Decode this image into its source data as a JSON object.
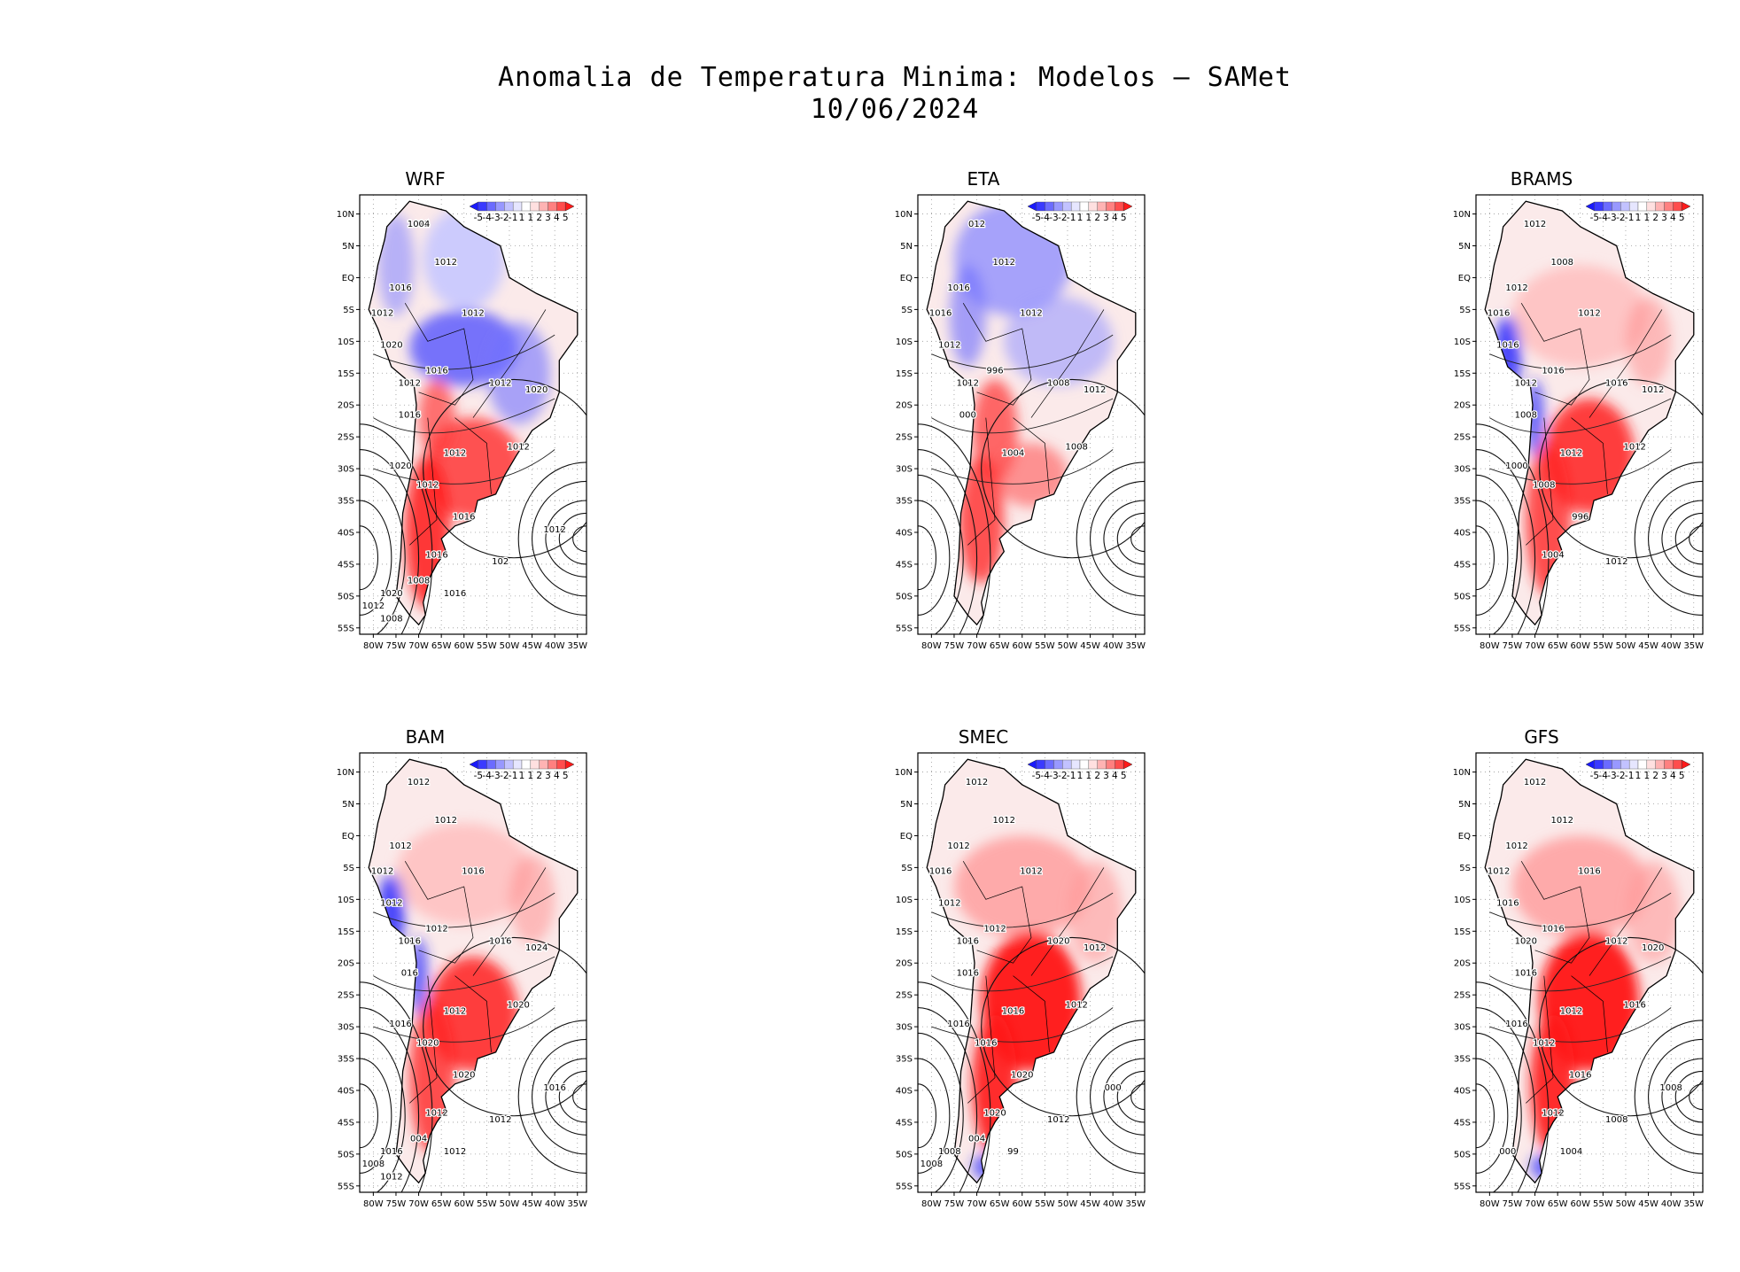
{
  "title": {
    "line1": "Anomalia de Temperatura Minima: Modelos – SAMet",
    "line2": "10/06/2024"
  },
  "colorbar": {
    "labels": [
      "-5",
      "-4",
      "-3",
      "-2",
      "-1",
      "1",
      "1",
      "2",
      "3",
      "4",
      "5"
    ],
    "colors": [
      "#1a1aff",
      "#3a3aff",
      "#6b6bff",
      "#9898ff",
      "#c2c2ff",
      "#e6e6ff",
      "#ffffff",
      "#ffe0e0",
      "#ffb3b3",
      "#ff8080",
      "#ff4d4d",
      "#ff1a1a"
    ]
  },
  "axes": {
    "lat_labels": [
      "10N",
      "5N",
      "EQ",
      "5S",
      "10S",
      "15S",
      "20S",
      "25S",
      "30S",
      "35S",
      "40S",
      "45S",
      "50S",
      "55S"
    ],
    "lon_labels": [
      "80W",
      "75W",
      "70W",
      "65W",
      "60W",
      "55W",
      "50W",
      "45W",
      "40W",
      "35W"
    ]
  },
  "panels": [
    {
      "name": "WRF",
      "tone": "mixed-cold-north",
      "isobars": [
        "1012",
        "1012",
        "1016",
        "1012",
        "1012",
        "1020",
        "1016",
        "1012",
        "1012",
        "1020",
        "1016",
        "1012",
        "1012",
        "1012",
        "1016",
        "1020",
        "1016",
        "102",
        "1020",
        "1016",
        "1012",
        "1008",
        "1012",
        "1008",
        "1004",
        "1012"
      ]
    },
    {
      "name": "ETA",
      "tone": "cold-north",
      "isobars": [
        "012",
        "1012",
        "1016",
        "1012",
        "1016",
        "1012",
        "996",
        "1012",
        "1008",
        "1012",
        "000",
        "1004",
        "1008"
      ]
    },
    {
      "name": "BRAMS",
      "tone": "warm",
      "isobars": [
        "1012",
        "1008",
        "1012",
        "1012",
        "1016",
        "1016",
        "1016",
        "1012",
        "1016",
        "1012",
        "1008",
        "1012",
        "1012",
        "1008",
        "996",
        "1000",
        "1004",
        "1012"
      ]
    },
    {
      "name": "BAM",
      "tone": "warm",
      "isobars": [
        "1012",
        "1012",
        "1012",
        "1016",
        "1012",
        "1012",
        "1012",
        "1016",
        "1016",
        "1024",
        "016",
        "1012",
        "1020",
        "1020",
        "1020",
        "1016",
        "1012",
        "1012",
        "1016",
        "1012",
        "1016",
        "004",
        "1008",
        "1012"
      ]
    },
    {
      "name": "SMEC",
      "tone": "hot",
      "isobars": [
        "1012",
        "1012",
        "1012",
        "1012",
        "1016",
        "1012",
        "1012",
        "1016",
        "1020",
        "1012",
        "1016",
        "1016",
        "1012",
        "1016",
        "1020",
        "1016",
        "1020",
        "1012",
        "1008",
        "99",
        "000",
        "004",
        "1008"
      ]
    },
    {
      "name": "GFS",
      "tone": "hot",
      "isobars": [
        "1012",
        "1012",
        "1012",
        "1016",
        "1012",
        "1016",
        "1016",
        "1020",
        "1012",
        "1020",
        "1016",
        "1012",
        "1016",
        "1012",
        "1016",
        "1016",
        "1012",
        "1008",
        "000",
        "1004",
        "1008"
      ]
    }
  ]
}
